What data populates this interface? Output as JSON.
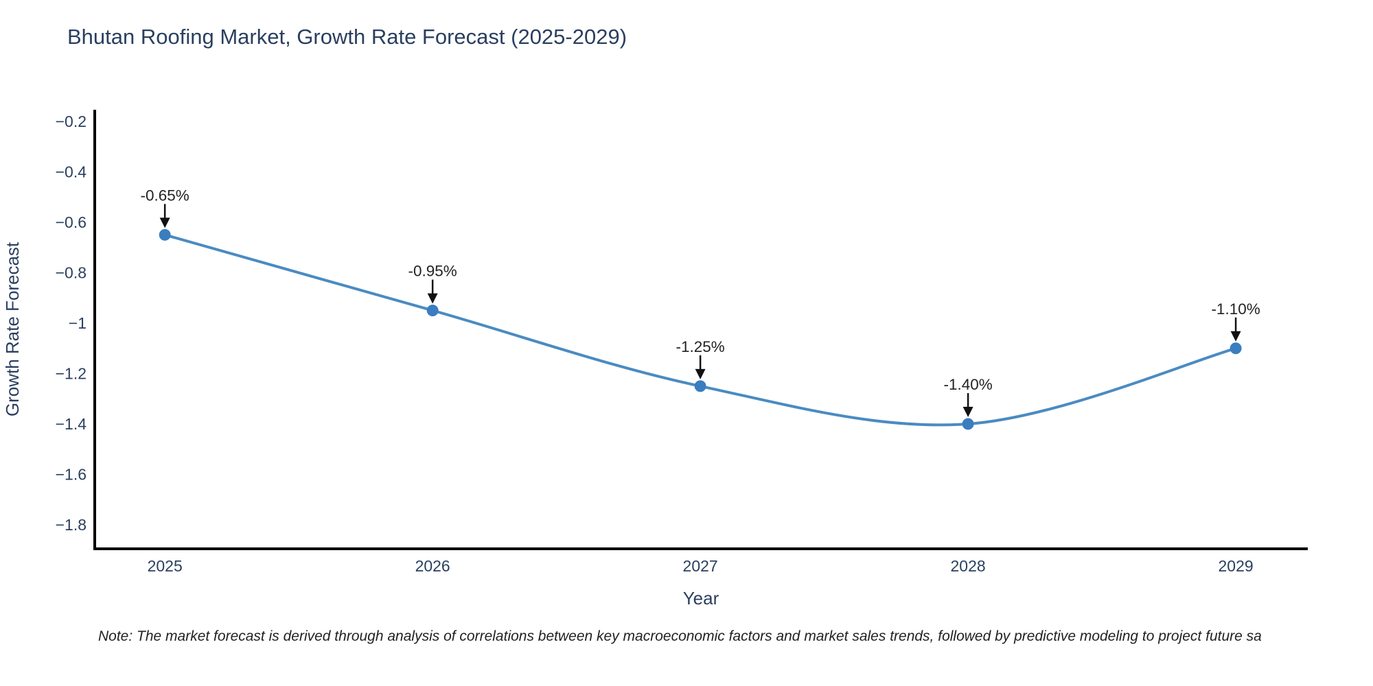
{
  "page": {
    "background": "#ffffff"
  },
  "chart_data": {
    "type": "line",
    "title": "Bhutan Roofing Market, Growth Rate Forecast (2025-2029)",
    "xlabel": "Year",
    "ylabel": "Growth Rate Forecast",
    "line_shape": "spline",
    "grid": false,
    "legend": "none",
    "x": [
      2025,
      2026,
      2027,
      2028,
      2029
    ],
    "y": [
      -0.65,
      -0.95,
      -1.25,
      -1.4,
      -1.1
    ],
    "point_labels": [
      "-0.65%",
      "-0.95%",
      "-1.25%",
      "-1.40%",
      "-1.10%"
    ],
    "x_tick_values": [
      2025,
      2026,
      2027,
      2028,
      2029
    ],
    "x_tick_labels": [
      "2025",
      "2026",
      "2027",
      "2028",
      "2029"
    ],
    "y_tick_values": [
      -0.2,
      -0.4,
      -0.6,
      -0.8,
      -1,
      -1.2,
      -1.4,
      -1.6,
      -1.8
    ],
    "y_tick_labels": [
      "−0.2",
      "−0.4",
      "−0.6",
      "−0.8",
      "−1",
      "−1.2",
      "−1.4",
      "−1.6",
      "−1.8"
    ],
    "xlim": [
      2024.738,
      2029.269
    ],
    "ylim": [
      -1.895,
      -0.154
    ],
    "colors": {
      "line": "#4a8bc2",
      "marker": "#3a7ebf",
      "arrow": "#111111",
      "axis_line": "#000000",
      "tick_text": "#2a3f5f",
      "title_text": "#2a3f5f",
      "annotation_text": "#222222"
    }
  },
  "note": {
    "text": "Note: The market forecast is derived through analysis of correlations between key macroeconomic factors and market sales trends, followed by predictive modeling to project future sa"
  }
}
